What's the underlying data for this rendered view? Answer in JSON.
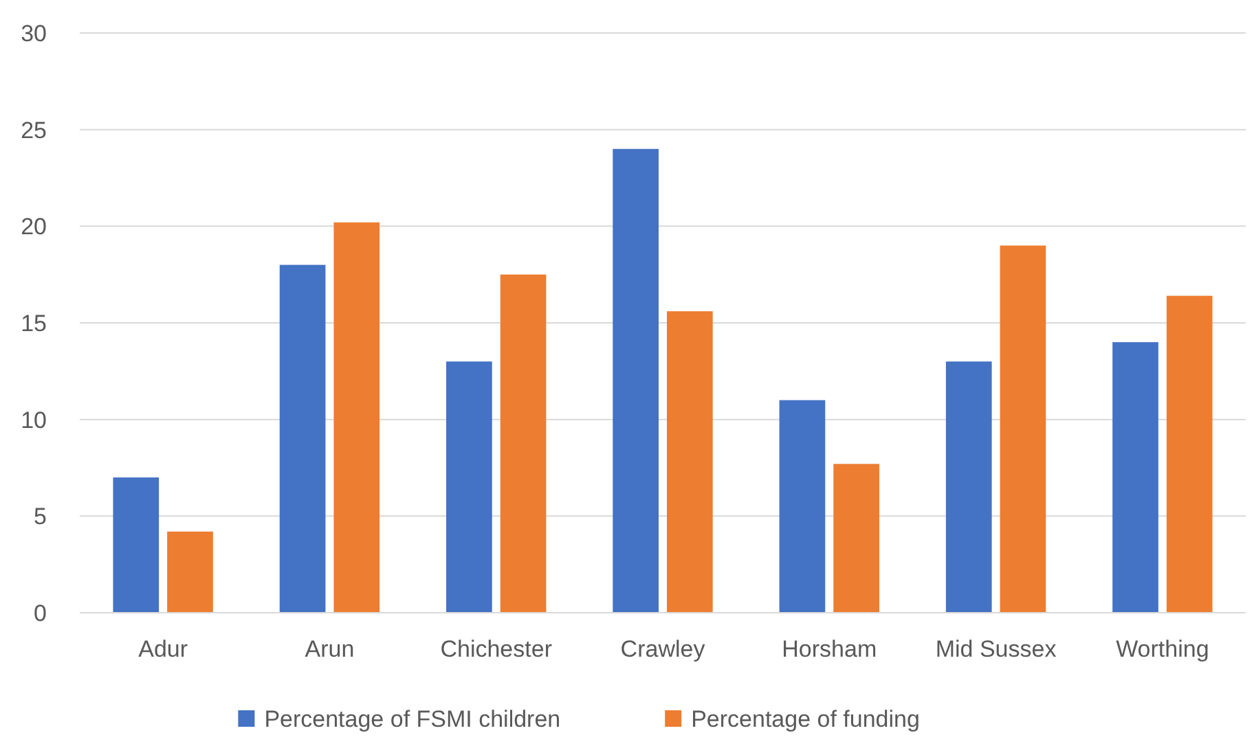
{
  "chart_data": {
    "type": "bar",
    "categories": [
      "Adur",
      "Arun",
      "Chichester",
      "Crawley",
      "Horsham",
      "Mid Sussex",
      "Worthing"
    ],
    "series": [
      {
        "name": "Percentage of FSMI children",
        "color": "#4472c4",
        "values": [
          7,
          18,
          13,
          24,
          11,
          13,
          14
        ]
      },
      {
        "name": "Percentage of funding",
        "color": "#ed7d31",
        "values": [
          4.2,
          20.2,
          17.5,
          15.6,
          7.7,
          19,
          16.4
        ]
      }
    ],
    "ylim": [
      0,
      30
    ],
    "yticks": [
      0,
      5,
      10,
      15,
      20,
      25,
      30
    ],
    "grid": "y",
    "legend": "bottom"
  }
}
